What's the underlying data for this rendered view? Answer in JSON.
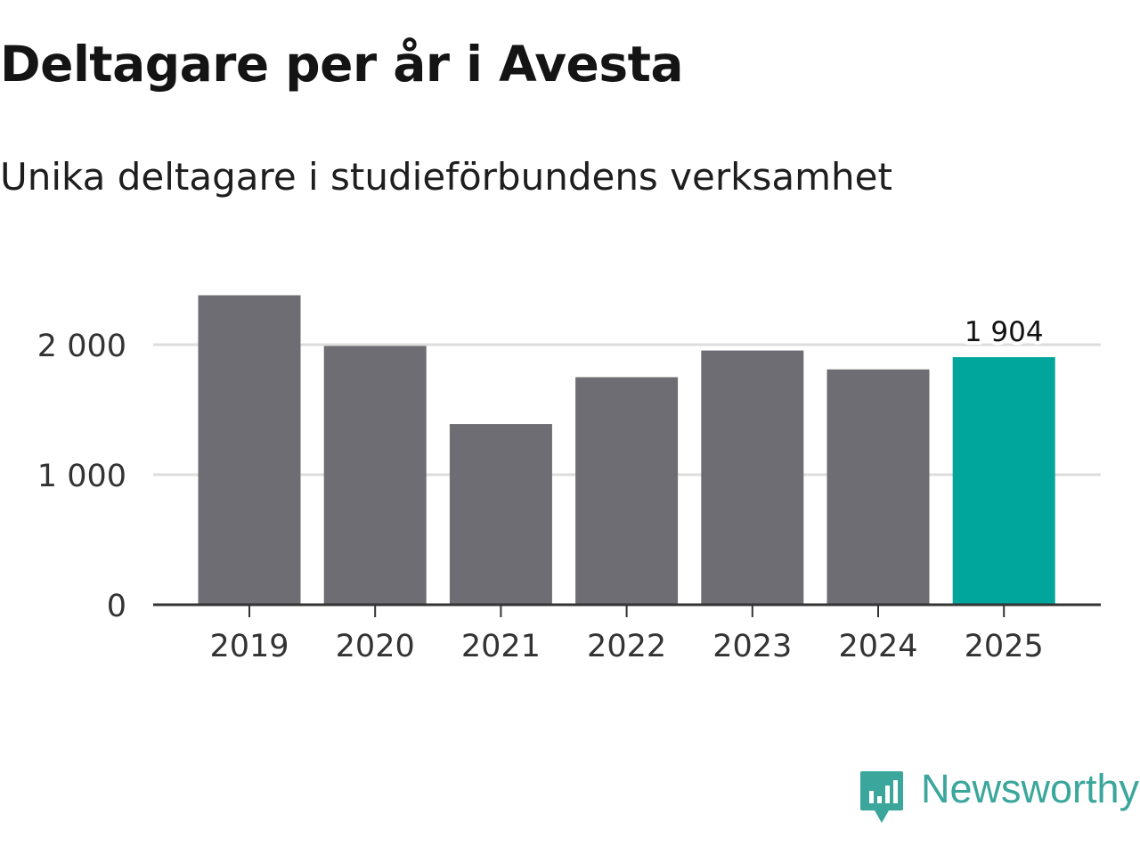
{
  "header": {
    "title": "Deltagare per år i Avesta",
    "subtitle": "Unika deltagare i studieförbundens verksamhet"
  },
  "branding": {
    "logo_text": "Newsworthy",
    "logo_icon": "newsworthy-bar-chart-icon",
    "logo_color": "#3aa69c"
  },
  "colors": {
    "bar": "#6e6d73",
    "highlight": "#00a59b",
    "grid": "#dddddd",
    "axis": "#333333",
    "text": "#333333"
  },
  "chart_data": {
    "type": "bar",
    "title": "Deltagare per år i Avesta",
    "subtitle": "Unika deltagare i studieförbundens verksamhet",
    "xlabel": "",
    "ylabel": "",
    "categories": [
      "2019",
      "2020",
      "2021",
      "2022",
      "2023",
      "2024",
      "2025"
    ],
    "values": [
      2380,
      1990,
      1390,
      1750,
      1955,
      1810,
      1904
    ],
    "highlight_index": 6,
    "value_labels": [
      {
        "index": 6,
        "text": "1 904"
      }
    ],
    "yticks": [
      {
        "value": 0,
        "label": "0"
      },
      {
        "value": 1000,
        "label": "1 000"
      },
      {
        "value": 2000,
        "label": "2 000"
      }
    ],
    "ylim": [
      0,
      2600
    ],
    "grid": true
  }
}
